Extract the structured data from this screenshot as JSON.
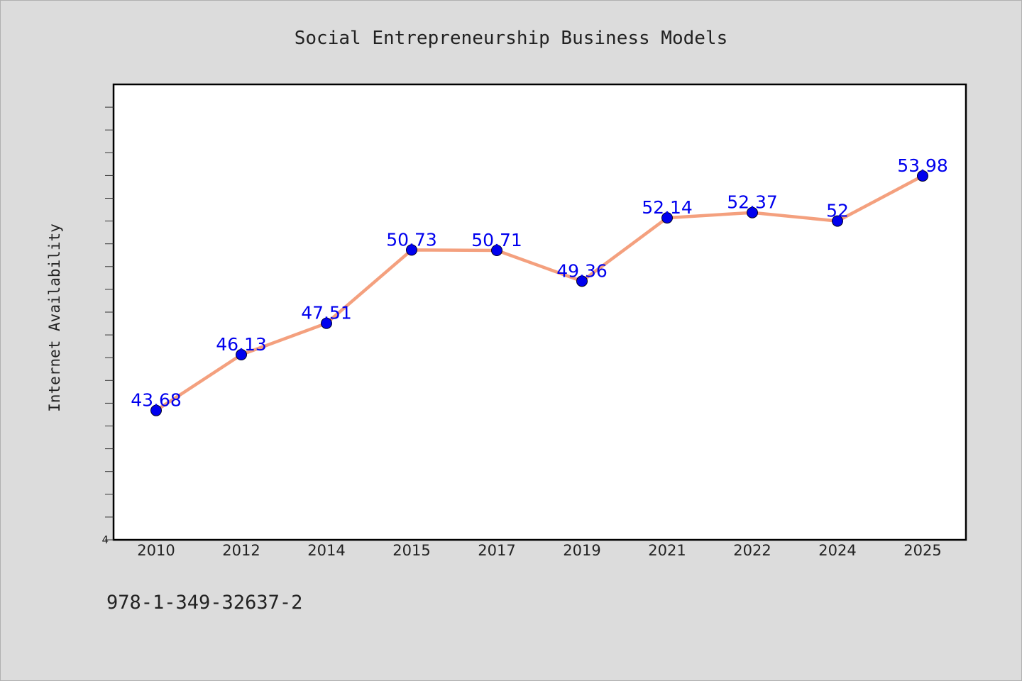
{
  "chart_data": {
    "type": "line",
    "title": "Social Entrepreneurship Business Models",
    "xlabel": "",
    "ylabel": "Internet Availability",
    "categories": [
      "2010",
      "2012",
      "2014",
      "2015",
      "2017",
      "2019",
      "2021",
      "2022",
      "2024",
      "2025"
    ],
    "series": [
      {
        "values": [
          43.68,
          46.13,
          47.51,
          50.73,
          50.71,
          49.36,
          52.14,
          52.37,
          52.0,
          53.98
        ],
        "labels": [
          "43.68",
          "46.13",
          "47.51",
          "50.73",
          "50.71",
          "49.36",
          "52.14",
          "52.37",
          "52",
          "53.98"
        ]
      }
    ],
    "ytick_labels": [
      "4"
    ],
    "ylim": [
      38,
      58
    ],
    "grid": false,
    "line_color": "#f4a07e",
    "marker_color": "#0000ee",
    "label_color": "#0000ee"
  },
  "footer": {
    "code": "978-1-349-32637-2"
  }
}
